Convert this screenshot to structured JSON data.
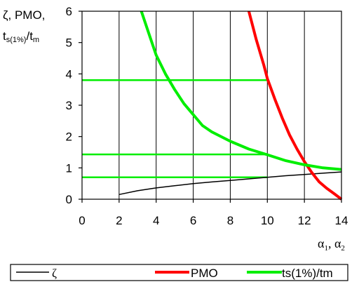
{
  "chart_data": {
    "type": "line",
    "ylabel_line1": "ζ, PMO,",
    "ylabel_line2_main": "t",
    "ylabel_line2_sub": "s(1%)",
    "ylabel_line2_slash": "/t",
    "ylabel_line2_sub2": "m",
    "xlabel_a": "α",
    "xlabel_a_sub": "1",
    "xlabel_sep": ", ",
    "xlabel_b": "α",
    "xlabel_b_sub": "2",
    "xlim": [
      0,
      14
    ],
    "ylim": [
      0,
      6
    ],
    "x_ticks": [
      0,
      2,
      4,
      6,
      8,
      10,
      12,
      14
    ],
    "y_ticks": [
      0,
      1,
      2,
      3,
      4,
      5,
      6
    ],
    "grid_x": [
      2,
      4,
      6,
      8,
      10,
      12,
      14
    ],
    "grid": true,
    "legend_position": "bottom",
    "series": [
      {
        "name": "ζ",
        "color": "#000000",
        "x": [
          2,
          3,
          4,
          5,
          6,
          7,
          8,
          9,
          10,
          11,
          12,
          13,
          14
        ],
        "y": [
          0.15,
          0.27,
          0.36,
          0.43,
          0.5,
          0.55,
          0.6,
          0.65,
          0.7,
          0.75,
          0.79,
          0.83,
          0.87
        ]
      },
      {
        "name": "PMO",
        "color": "#ff0000",
        "x": [
          9.0,
          9.4,
          9.8,
          10.0,
          10.4,
          10.8,
          11.2,
          11.6,
          12.0,
          12.4,
          12.8,
          13.2,
          13.6,
          14.0
        ],
        "y": [
          6.0,
          5.1,
          4.3,
          3.85,
          3.2,
          2.6,
          2.05,
          1.6,
          1.2,
          0.85,
          0.55,
          0.35,
          0.18,
          0.0
        ]
      },
      {
        "name": "ts(1%)/tm",
        "color": "#00ee00",
        "x": [
          3.2,
          3.6,
          4.0,
          4.5,
          5.0,
          5.5,
          6.0,
          6.5,
          7.0,
          8.0,
          9.0,
          10.0,
          11.0,
          12.0,
          13.0,
          14.0
        ],
        "y": [
          6.0,
          5.3,
          4.6,
          4.0,
          3.5,
          3.05,
          2.7,
          2.35,
          2.15,
          1.85,
          1.6,
          1.42,
          1.23,
          1.1,
          1.0,
          0.95
        ]
      }
    ],
    "reference_lines": [
      {
        "y": 3.8,
        "x_from": 0,
        "x_to": 10,
        "color": "#00ee00"
      },
      {
        "y": 1.43,
        "x_from": 0,
        "x_to": 10,
        "color": "#00ee00"
      },
      {
        "y": 0.7,
        "x_from": 0,
        "x_to": 10,
        "color": "#00ee00"
      }
    ]
  }
}
